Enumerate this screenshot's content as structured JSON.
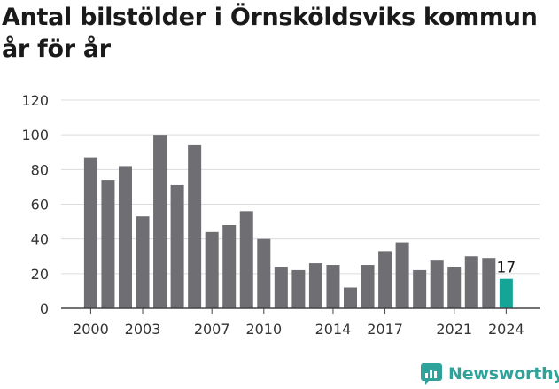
{
  "chart_data": {
    "type": "bar",
    "title": "Antal bilstölder i Örnsköldsviks kommun år för år",
    "xlabel": "",
    "ylabel": "",
    "ylim": [
      0,
      120
    ],
    "yticks": [
      0,
      20,
      40,
      60,
      80,
      100,
      120
    ],
    "grid": true,
    "categories": [
      "2000",
      "2001",
      "2002",
      "2003",
      "2004",
      "2005",
      "2006",
      "2007",
      "2008",
      "2009",
      "2010",
      "2011",
      "2012",
      "2013",
      "2014",
      "2015",
      "2016",
      "2017",
      "2018",
      "2019",
      "2020",
      "2021",
      "2022",
      "2023",
      "2024"
    ],
    "xtick_labels": [
      "2000",
      "2003",
      "2007",
      "2010",
      "2014",
      "2017",
      "2021",
      "2024"
    ],
    "values": [
      87,
      74,
      82,
      53,
      100,
      71,
      94,
      44,
      48,
      56,
      40,
      24,
      22,
      26,
      25,
      12,
      25,
      33,
      38,
      22,
      28,
      24,
      30,
      29,
      17
    ],
    "highlight": {
      "category": "2024",
      "label": "17"
    },
    "colors": {
      "bar": "#6f6f73",
      "highlight": "#14a596",
      "grid": "#dcdcdc",
      "axis": "#444444"
    }
  },
  "brand": {
    "name": "Newsworthy",
    "icon": "newsworthy-logo-icon",
    "color": "#2fa39a"
  }
}
